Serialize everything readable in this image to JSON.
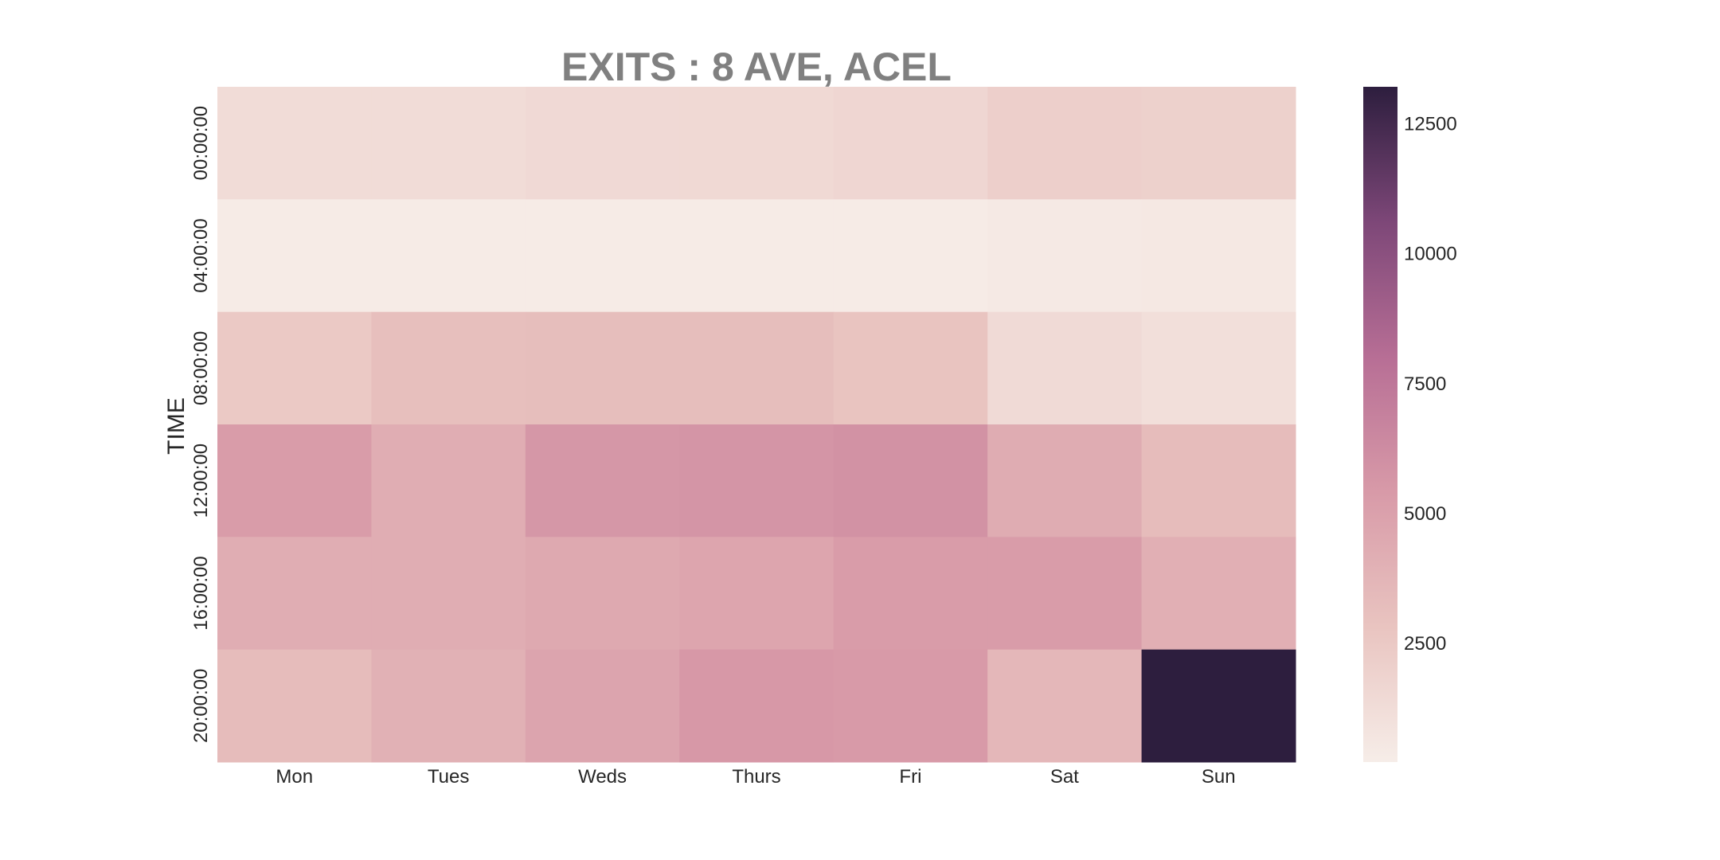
{
  "chart_data": {
    "type": "heatmap",
    "title": "EXITS : 8 AVE, ACEL",
    "xlabel": "",
    "ylabel": "TIME",
    "x_categories": [
      "Mon",
      "Tues",
      "Weds",
      "Thurs",
      "Fri",
      "Sat",
      "Sun"
    ],
    "y_categories": [
      "00:00:00",
      "04:00:00",
      "08:00:00",
      "12:00:00",
      "16:00:00",
      "20:00:00"
    ],
    "values": [
      [
        1300,
        1300,
        1450,
        1500,
        1650,
        2100,
        2000
      ],
      [
        300,
        300,
        300,
        300,
        300,
        450,
        500
      ],
      [
        2500,
        3100,
        3200,
        3200,
        2800,
        1400,
        1100
      ],
      [
        5300,
        4200,
        5600,
        5700,
        5900,
        4300,
        3300
      ],
      [
        4200,
        4200,
        4500,
        4700,
        5300,
        5300,
        4100
      ],
      [
        3300,
        4000,
        4800,
        5500,
        5400,
        3600,
        13200
      ]
    ],
    "colorbar": {
      "range": [
        200,
        13200
      ],
      "ticks": [
        "2500",
        "5000",
        "7500",
        "10000",
        "12500"
      ],
      "tick_values": [
        2500,
        5000,
        7500,
        10000,
        12500
      ]
    },
    "colormap": [
      "#f6ede8",
      "#e9c4c0",
      "#d89aa8",
      "#b76e95",
      "#7d4778",
      "#2d1e3e"
    ],
    "grid": false,
    "legend": "colorbar-right"
  }
}
